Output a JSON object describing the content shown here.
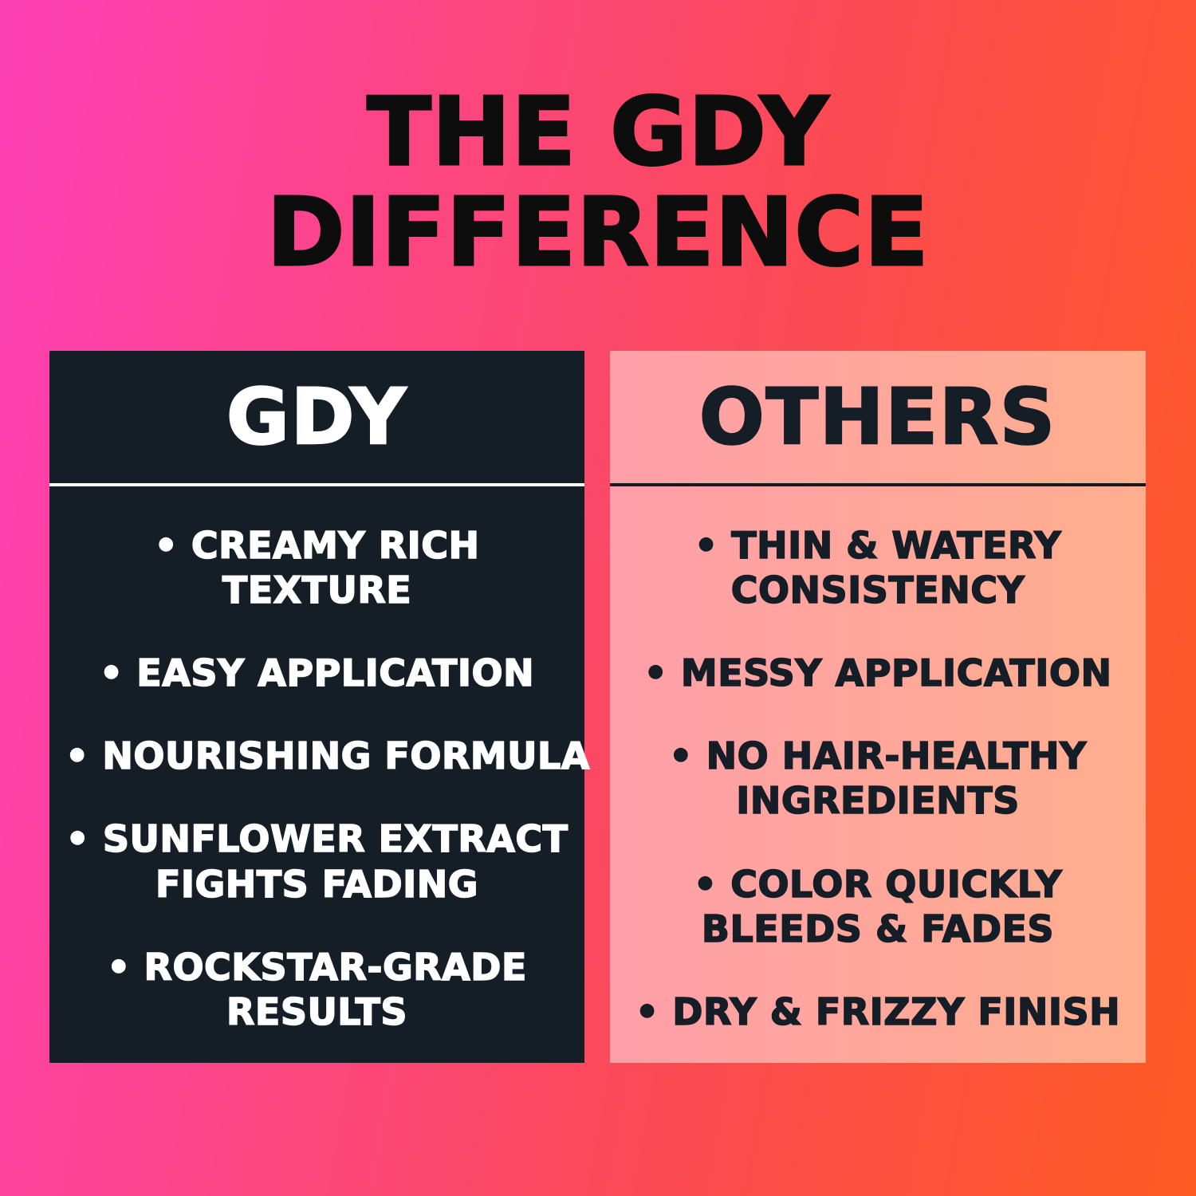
{
  "page": {
    "title_line1": "THE GDY",
    "title_line2": "DIFFERENCE",
    "bullet": "•"
  },
  "colors": {
    "background_gradient_left": "#fe40b7",
    "background_gradient_mid": "#fc4a52",
    "background_gradient_right": "#ff5a22",
    "gdy_panel_bg": "#151d27",
    "gdy_panel_text": "#ffffff",
    "others_panel_left": "#ff9fa9",
    "others_panel_right": "#ffae8d",
    "others_panel_text": "#151d27",
    "title_text": "#0d0d0d"
  },
  "columns": [
    {
      "id": "gdy",
      "title": "GDY",
      "items": [
        [
          "CREAMY RICH",
          "TEXTURE"
        ],
        [
          "EASY APPLICATION"
        ],
        [
          "NOURISHING FORMULA"
        ],
        [
          "SUNFLOWER EXTRACT",
          "FIGHTS FADING"
        ],
        [
          "ROCKSTAR-GRADE",
          "RESULTS"
        ]
      ]
    },
    {
      "id": "others",
      "title": "OTHERS",
      "items": [
        [
          "THIN & WATERY",
          "CONSISTENCY"
        ],
        [
          "MESSY APPLICATION"
        ],
        [
          "NO HAIR-HEALTHY",
          "INGREDIENTS"
        ],
        [
          "COLOR QUICKLY",
          "BLEEDS & FADES"
        ],
        [
          "DRY & FRIZZY FINISH"
        ]
      ]
    }
  ]
}
